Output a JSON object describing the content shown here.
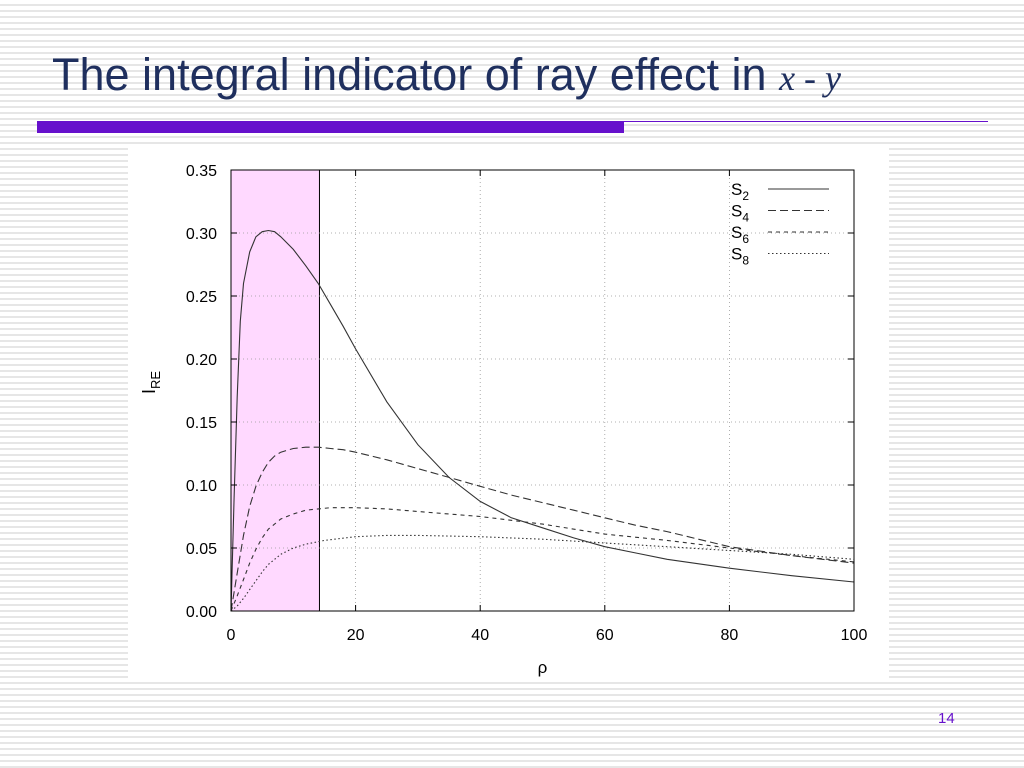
{
  "slide": {
    "title_text": "The integral indicator of ray effect in ",
    "title_var_x": "x",
    "title_sep": " - ",
    "title_var_y": "y",
    "page_number": "14",
    "accent_color": "#6611cc",
    "title_color": "#1f2f5e"
  },
  "chart_data": {
    "type": "line",
    "xlabel": "ρ",
    "ylabel": "I",
    "ylabel_sub": "RE",
    "xlim": [
      0,
      100
    ],
    "ylim": [
      0,
      0.35
    ],
    "xticks": [
      0,
      20,
      40,
      60,
      80,
      100
    ],
    "xtick_labels": [
      "0",
      "20",
      "40",
      "60",
      "80",
      "100"
    ],
    "yticks": [
      0,
      0.05,
      0.1,
      0.15,
      0.2,
      0.25,
      0.3,
      0.35
    ],
    "ytick_labels": [
      "0.00",
      "0.05",
      "0.10",
      "0.15",
      "0.20",
      "0.25",
      "0.30",
      "0.35"
    ],
    "grid": true,
    "grid_style": "dotted",
    "legend_position": "top-right",
    "highlight_region": {
      "x": [
        0,
        14.2
      ],
      "color": "#ffd9ff"
    },
    "series": [
      {
        "name": "S",
        "subscript": "2",
        "dash": "solid",
        "x": [
          0,
          0.5,
          1,
          1.5,
          2,
          3,
          4,
          5,
          6,
          7,
          8,
          10,
          12,
          14,
          16,
          18,
          20,
          25,
          30,
          35,
          40,
          45,
          50,
          55,
          60,
          65,
          70,
          80,
          90,
          100
        ],
        "y": [
          0,
          0.09,
          0.17,
          0.23,
          0.26,
          0.285,
          0.297,
          0.301,
          0.302,
          0.301,
          0.297,
          0.287,
          0.274,
          0.26,
          0.243,
          0.226,
          0.208,
          0.166,
          0.132,
          0.106,
          0.087,
          0.074,
          0.066,
          0.058,
          0.051,
          0.046,
          0.041,
          0.034,
          0.028,
          0.023
        ]
      },
      {
        "name": "S",
        "subscript": "4",
        "dash": "long-dash",
        "x": [
          0,
          1,
          2,
          3,
          4,
          5,
          6,
          7,
          8,
          10,
          12,
          14,
          16,
          18,
          20,
          25,
          30,
          35,
          40,
          45,
          50,
          55,
          60,
          65,
          70,
          80,
          90,
          100
        ],
        "y": [
          0,
          0.03,
          0.06,
          0.083,
          0.099,
          0.11,
          0.118,
          0.123,
          0.126,
          0.129,
          0.13,
          0.13,
          0.129,
          0.128,
          0.126,
          0.12,
          0.113,
          0.106,
          0.099,
          0.092,
          0.086,
          0.08,
          0.074,
          0.068,
          0.063,
          0.051,
          0.044,
          0.038
        ]
      },
      {
        "name": "S",
        "subscript": "6",
        "dash": "short-dash",
        "x": [
          0,
          1,
          2,
          3,
          4,
          5,
          6,
          8,
          10,
          12,
          14,
          16,
          20,
          25,
          30,
          40,
          50,
          60,
          70,
          80,
          90,
          100
        ],
        "y": [
          0,
          0.012,
          0.025,
          0.038,
          0.049,
          0.058,
          0.065,
          0.073,
          0.077,
          0.08,
          0.081,
          0.082,
          0.082,
          0.081,
          0.079,
          0.075,
          0.069,
          0.061,
          0.056,
          0.05,
          0.044,
          0.039
        ]
      },
      {
        "name": "S",
        "subscript": "8",
        "dash": "dotted",
        "x": [
          0,
          1,
          2,
          3,
          4,
          5,
          6,
          8,
          10,
          12,
          15,
          20,
          25,
          30,
          40,
          50,
          60,
          70,
          80,
          90,
          100
        ],
        "y": [
          0,
          0.004,
          0.01,
          0.017,
          0.024,
          0.031,
          0.037,
          0.045,
          0.05,
          0.053,
          0.056,
          0.059,
          0.06,
          0.06,
          0.059,
          0.057,
          0.054,
          0.051,
          0.048,
          0.045,
          0.041
        ]
      }
    ]
  }
}
